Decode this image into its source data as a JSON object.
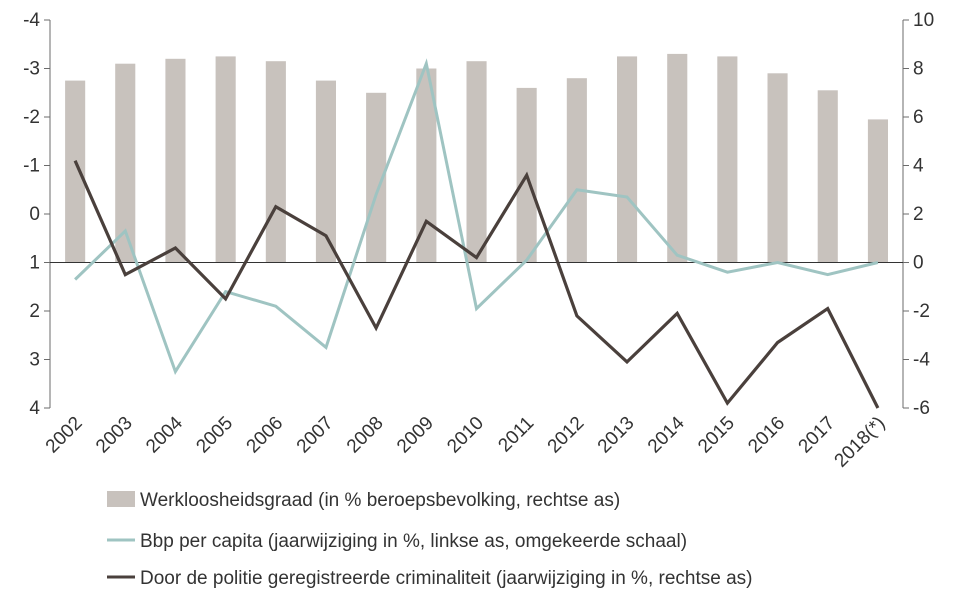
{
  "chart_data": {
    "type": "bar+line",
    "categories": [
      "2002",
      "2003",
      "2004",
      "2005",
      "2006",
      "2007",
      "2008",
      "2009",
      "2010",
      "2011",
      "2012",
      "2013",
      "2014",
      "2015",
      "2016",
      "2017",
      "2018(*)"
    ],
    "series": [
      {
        "name": "Werkloosheidsgraad (in % beroepsbevolking, rechtse as)",
        "type": "bar",
        "axis": "right",
        "color": "#c8c2bd",
        "values": [
          7.5,
          8.2,
          8.4,
          8.5,
          8.3,
          7.5,
          7.0,
          8.0,
          8.3,
          7.2,
          7.6,
          8.5,
          8.6,
          8.5,
          7.8,
          7.1,
          5.9
        ]
      },
      {
        "name": "Bbp per capita (jaarwijziging in %, linkse as, omgekeerde schaal)",
        "type": "line",
        "axis": "left",
        "color": "#9fc4c2",
        "values": [
          1.35,
          0.35,
          3.25,
          1.6,
          1.9,
          2.75,
          -0.4,
          -3.1,
          1.95,
          0.95,
          -0.5,
          -0.35,
          0.85,
          1.2,
          1.0,
          1.25,
          1.0
        ]
      },
      {
        "name": "Door de politie geregistreerde criminaliteit (jaarwijziging in %, rechtse as)",
        "type": "line",
        "axis": "right",
        "color": "#4a403c",
        "values": [
          4.2,
          -0.5,
          0.6,
          -1.5,
          2.3,
          1.1,
          -2.7,
          1.7,
          0.2,
          3.6,
          -2.2,
          -4.1,
          -2.1,
          -5.8,
          -3.3,
          -1.9,
          -6.0
        ]
      }
    ],
    "left_axis": {
      "range": [
        -4,
        4
      ],
      "inverted": true,
      "ticks": [
        "-4",
        "-3",
        "-2",
        "-1",
        "0",
        "1",
        "2",
        "3",
        "4"
      ]
    },
    "right_axis": {
      "range": [
        -6,
        10
      ],
      "ticks": [
        "10",
        "8",
        "6",
        "4",
        "2",
        "0",
        "-2",
        "-4",
        "-6"
      ]
    },
    "grid": false,
    "legend_position": "bottom"
  }
}
